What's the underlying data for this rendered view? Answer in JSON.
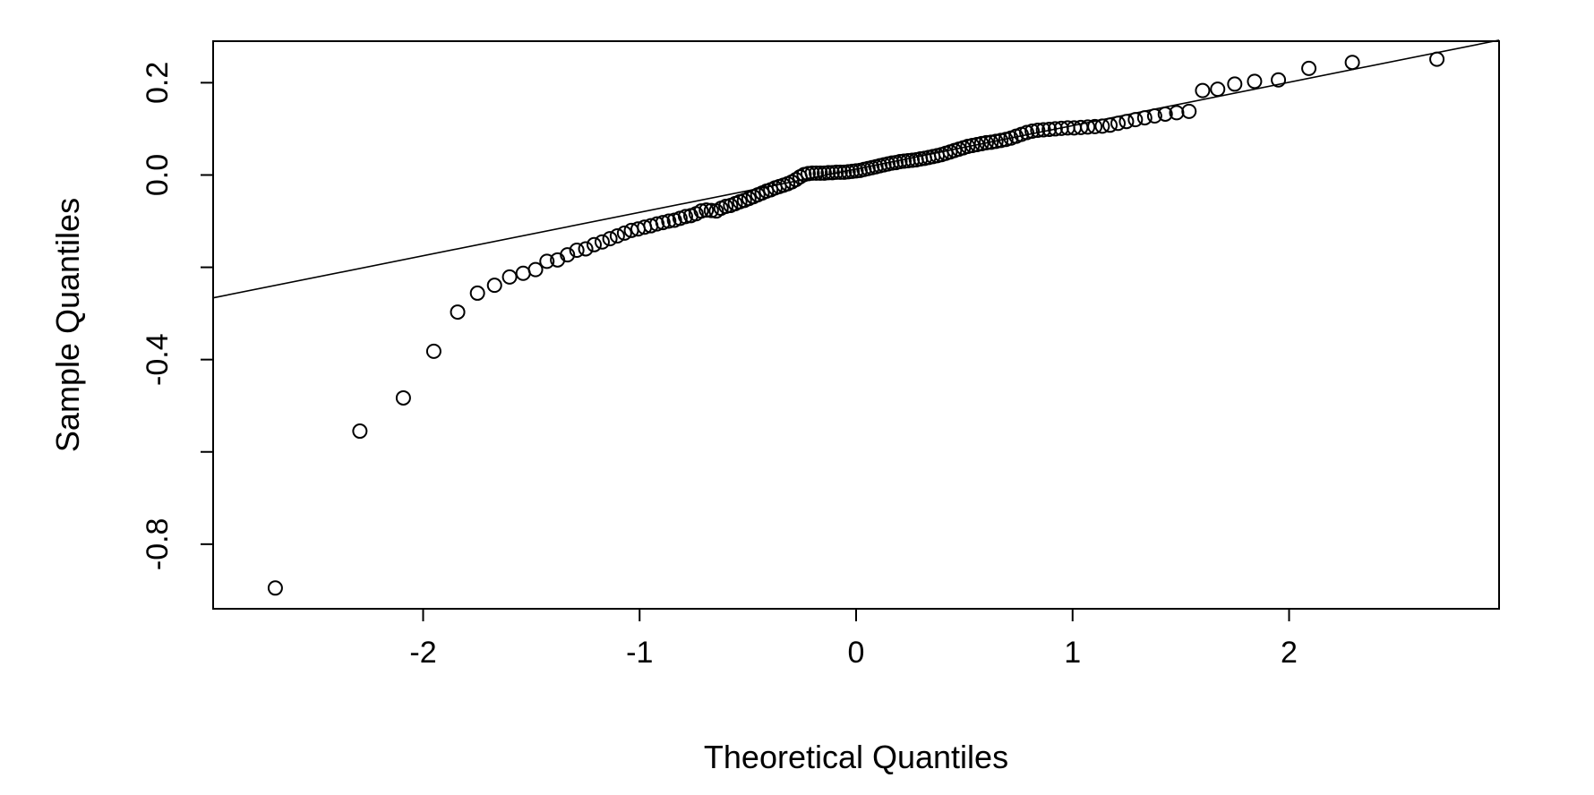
{
  "chart_data": {
    "type": "scatter",
    "xlabel": "Theoretical Quantiles",
    "ylabel": "Sample Quantiles",
    "xlim": [
      -2.97,
      2.97
    ],
    "ylim": [
      -0.94,
      0.29
    ],
    "x_ticks": [
      -2,
      -1,
      0,
      1,
      2
    ],
    "x_tick_labels": [
      "-2",
      "-1",
      "0",
      "1",
      "2"
    ],
    "y_ticks": [
      -0.8,
      -0.6,
      -0.4,
      -0.2,
      0.0,
      0.2
    ],
    "y_tick_labels": [
      "-0.8",
      "",
      "-0.4",
      "",
      "0.0",
      "0.2"
    ],
    "grid": false,
    "marker": "open-circle",
    "reference_line": {
      "type": "qqline",
      "intercept": 0.013,
      "slope": 0.094
    },
    "series": [
      {
        "values": [
          -0.895,
          -0.555,
          -0.483,
          -0.382,
          -0.297,
          -0.256,
          -0.239,
          -0.221,
          -0.213,
          -0.205,
          -0.187,
          -0.184,
          -0.173,
          -0.163,
          -0.16,
          -0.151,
          -0.145,
          -0.138,
          -0.132,
          -0.126,
          -0.12,
          -0.117,
          -0.113,
          -0.11,
          -0.106,
          -0.103,
          -0.1,
          -0.098,
          -0.094,
          -0.09,
          -0.088,
          -0.084,
          -0.078,
          -0.076,
          -0.077,
          -0.078,
          -0.072,
          -0.068,
          -0.066,
          -0.062,
          -0.058,
          -0.055,
          -0.051,
          -0.047,
          -0.043,
          -0.039,
          -0.035,
          -0.032,
          -0.028,
          -0.025,
          -0.022,
          -0.019,
          -0.015,
          -0.01,
          -0.004,
          0.001,
          0.003,
          0.004,
          0.004,
          0.004,
          0.004,
          0.005,
          0.005,
          0.006,
          0.006,
          0.006,
          0.007,
          0.008,
          0.009,
          0.01,
          0.012,
          0.014,
          0.016,
          0.018,
          0.02,
          0.022,
          0.024,
          0.026,
          0.027,
          0.029,
          0.03,
          0.031,
          0.032,
          0.033,
          0.035,
          0.036,
          0.038,
          0.04,
          0.042,
          0.044,
          0.047,
          0.05,
          0.053,
          0.056,
          0.059,
          0.062,
          0.064,
          0.066,
          0.068,
          0.07,
          0.071,
          0.073,
          0.075,
          0.077,
          0.08,
          0.084,
          0.088,
          0.092,
          0.095,
          0.097,
          0.098,
          0.099,
          0.1,
          0.101,
          0.102,
          0.102,
          0.103,
          0.104,
          0.105,
          0.106,
          0.108,
          0.112,
          0.116,
          0.12,
          0.124,
          0.128,
          0.132,
          0.135,
          0.138,
          0.183,
          0.186,
          0.197,
          0.203,
          0.206,
          0.231,
          0.244,
          0.251
        ]
      }
    ]
  }
}
